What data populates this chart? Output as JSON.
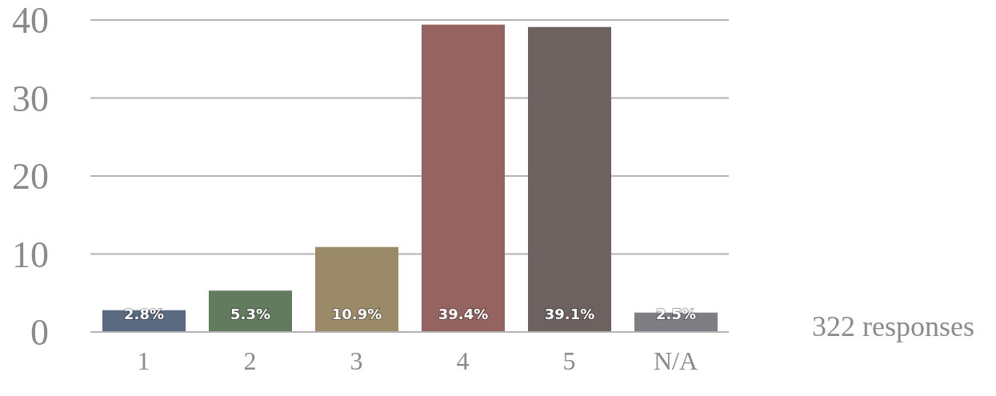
{
  "chart_data": {
    "type": "bar",
    "categories": [
      "1",
      "2",
      "3",
      "4",
      "5",
      "N/A"
    ],
    "values": [
      2.8,
      5.3,
      10.9,
      39.4,
      39.1,
      2.5
    ],
    "colors": [
      "#5a6a80",
      "#627a5e",
      "#9a8a68",
      "#966460",
      "#6e6260",
      "#7e7e84"
    ],
    "value_labels": [
      "2.8%",
      "5.3%",
      "10.9%",
      "39.4%",
      "39.1%",
      "2.5%"
    ],
    "ylim": [
      0,
      40
    ],
    "yticks": [
      0,
      10,
      20,
      30,
      40
    ],
    "grid": "y",
    "annotations": [
      "322 responses"
    ]
  }
}
